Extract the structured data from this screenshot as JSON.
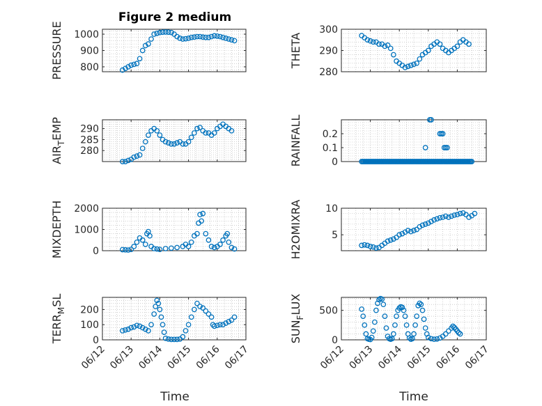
{
  "figure": {
    "title": "Figure 2 medium",
    "xlabel": "Time",
    "marker_color": "#0072BD",
    "axis_color": "#262626",
    "grid_color": "#b0b0b0"
  },
  "chart_data": [
    {
      "id": "pressure",
      "type": "scatter",
      "title": "Figure 2 medium",
      "ylabel": "PRESSURE",
      "ylim": [
        770,
        1030
      ],
      "yticks": [
        800,
        900,
        1000
      ],
      "xlim": [
        12,
        17
      ],
      "xticks": [
        12,
        13,
        14,
        15,
        16,
        17
      ],
      "grid": true,
      "points": [
        [
          12.7,
          780
        ],
        [
          12.8,
          790
        ],
        [
          12.9,
          800
        ],
        [
          13.0,
          810
        ],
        [
          13.1,
          815
        ],
        [
          13.2,
          820
        ],
        [
          13.3,
          850
        ],
        [
          13.4,
          900
        ],
        [
          13.5,
          930
        ],
        [
          13.6,
          940
        ],
        [
          13.7,
          970
        ],
        [
          13.8,
          1000
        ],
        [
          13.9,
          1005
        ],
        [
          14.0,
          1010
        ],
        [
          14.1,
          1012
        ],
        [
          14.2,
          1013
        ],
        [
          14.3,
          1012
        ],
        [
          14.4,
          1010
        ],
        [
          14.5,
          1000
        ],
        [
          14.6,
          985
        ],
        [
          14.7,
          975
        ],
        [
          14.8,
          970
        ],
        [
          14.9,
          972
        ],
        [
          15.0,
          975
        ],
        [
          15.1,
          980
        ],
        [
          15.2,
          982
        ],
        [
          15.3,
          985
        ],
        [
          15.4,
          985
        ],
        [
          15.5,
          982
        ],
        [
          15.6,
          980
        ],
        [
          15.7,
          980
        ],
        [
          15.8,
          985
        ],
        [
          15.9,
          990
        ],
        [
          16.0,
          988
        ],
        [
          16.1,
          985
        ],
        [
          16.2,
          980
        ],
        [
          16.3,
          975
        ],
        [
          16.4,
          970
        ],
        [
          16.5,
          965
        ],
        [
          16.6,
          960
        ]
      ]
    },
    {
      "id": "theta",
      "type": "scatter",
      "ylabel": "THETA",
      "ylim": [
        280,
        300
      ],
      "yticks": [
        280,
        290,
        300
      ],
      "xlim": [
        12,
        17
      ],
      "xticks": [
        12,
        13,
        14,
        15,
        16,
        17
      ],
      "grid": true,
      "points": [
        [
          12.7,
          297
        ],
        [
          12.8,
          296
        ],
        [
          12.9,
          295
        ],
        [
          13.0,
          294.5
        ],
        [
          13.1,
          294
        ],
        [
          13.2,
          294
        ],
        [
          13.3,
          293
        ],
        [
          13.4,
          293
        ],
        [
          13.5,
          292
        ],
        [
          13.6,
          292.5
        ],
        [
          13.7,
          291
        ],
        [
          13.8,
          288
        ],
        [
          13.9,
          285
        ],
        [
          14.0,
          284
        ],
        [
          14.1,
          283
        ],
        [
          14.2,
          282
        ],
        [
          14.3,
          282.5
        ],
        [
          14.4,
          283
        ],
        [
          14.5,
          283.5
        ],
        [
          14.6,
          284
        ],
        [
          14.7,
          286
        ],
        [
          14.8,
          288
        ],
        [
          14.9,
          289
        ],
        [
          15.0,
          290
        ],
        [
          15.1,
          292
        ],
        [
          15.2,
          293
        ],
        [
          15.3,
          294
        ],
        [
          15.4,
          293
        ],
        [
          15.5,
          291
        ],
        [
          15.6,
          290
        ],
        [
          15.7,
          289
        ],
        [
          15.8,
          290
        ],
        [
          15.9,
          291
        ],
        [
          16.0,
          292
        ],
        [
          16.1,
          294
        ],
        [
          16.2,
          295
        ],
        [
          16.3,
          294
        ],
        [
          16.4,
          293
        ]
      ]
    },
    {
      "id": "air_temp",
      "type": "scatter",
      "ylabel": "AIR_TEMP",
      "ylabel_main": "AIR",
      "ylabel_sub": "T",
      "ylabel_tail": "EMP",
      "ylim": [
        275,
        294
      ],
      "yticks": [
        280,
        285,
        290
      ],
      "xlim": [
        12,
        17
      ],
      "xticks": [
        12,
        13,
        14,
        15,
        16,
        17
      ],
      "grid": true,
      "points": [
        [
          12.7,
          275
        ],
        [
          12.8,
          275
        ],
        [
          12.9,
          275.5
        ],
        [
          13.0,
          276
        ],
        [
          13.1,
          277
        ],
        [
          13.2,
          277.5
        ],
        [
          13.3,
          278
        ],
        [
          13.4,
          281
        ],
        [
          13.5,
          284
        ],
        [
          13.6,
          287
        ],
        [
          13.7,
          289
        ],
        [
          13.8,
          290
        ],
        [
          13.9,
          289
        ],
        [
          14.0,
          287
        ],
        [
          14.1,
          285
        ],
        [
          14.2,
          284
        ],
        [
          14.3,
          283.5
        ],
        [
          14.4,
          283
        ],
        [
          14.5,
          283
        ],
        [
          14.6,
          283.5
        ],
        [
          14.7,
          284
        ],
        [
          14.8,
          283
        ],
        [
          14.9,
          283
        ],
        [
          15.0,
          284
        ],
        [
          15.1,
          286
        ],
        [
          15.2,
          288
        ],
        [
          15.3,
          290
        ],
        [
          15.4,
          290.5
        ],
        [
          15.5,
          289
        ],
        [
          15.6,
          288
        ],
        [
          15.7,
          288
        ],
        [
          15.8,
          287
        ],
        [
          15.9,
          288
        ],
        [
          16.0,
          290
        ],
        [
          16.1,
          291
        ],
        [
          16.2,
          292
        ],
        [
          16.3,
          291
        ],
        [
          16.4,
          290
        ],
        [
          16.5,
          289
        ]
      ]
    },
    {
      "id": "rainfall",
      "type": "scatter",
      "ylabel": "RAINFALL",
      "ylim": [
        0,
        0.3
      ],
      "yticks": [
        0,
        0.1,
        0.2
      ],
      "xlim": [
        12,
        17
      ],
      "xticks": [
        12,
        13,
        14,
        15,
        16,
        17
      ],
      "grid": true,
      "zero_range": [
        12.7,
        16.5
      ],
      "points": [
        [
          14.9,
          0.1
        ],
        [
          15.05,
          0.3
        ],
        [
          15.1,
          0.3
        ],
        [
          15.4,
          0.2
        ],
        [
          15.45,
          0.2
        ],
        [
          15.5,
          0.2
        ],
        [
          15.55,
          0.1
        ],
        [
          15.6,
          0.1
        ],
        [
          15.65,
          0.1
        ]
      ]
    },
    {
      "id": "mixdepth",
      "type": "scatter",
      "ylabel": "MIXDEPTH",
      "ylim": [
        0,
        2000
      ],
      "yticks": [
        0,
        1000,
        2000
      ],
      "xlim": [
        12,
        17
      ],
      "xticks": [
        12,
        13,
        14,
        15,
        16,
        17
      ],
      "grid": true,
      "points": [
        [
          12.7,
          50
        ],
        [
          12.8,
          40
        ],
        [
          12.9,
          30
        ],
        [
          13.0,
          60
        ],
        [
          13.1,
          200
        ],
        [
          13.2,
          400
        ],
        [
          13.3,
          600
        ],
        [
          13.4,
          500
        ],
        [
          13.5,
          300
        ],
        [
          13.55,
          800
        ],
        [
          13.6,
          900
        ],
        [
          13.65,
          700
        ],
        [
          13.7,
          200
        ],
        [
          13.8,
          100
        ],
        [
          13.9,
          80
        ],
        [
          14.0,
          60
        ],
        [
          14.2,
          100
        ],
        [
          14.4,
          120
        ],
        [
          14.6,
          150
        ],
        [
          14.8,
          200
        ],
        [
          14.9,
          300
        ],
        [
          15.0,
          200
        ],
        [
          15.1,
          400
        ],
        [
          15.2,
          700
        ],
        [
          15.3,
          800
        ],
        [
          15.35,
          1300
        ],
        [
          15.4,
          1700
        ],
        [
          15.45,
          1400
        ],
        [
          15.5,
          1750
        ],
        [
          15.6,
          800
        ],
        [
          15.7,
          500
        ],
        [
          15.8,
          200
        ],
        [
          15.9,
          150
        ],
        [
          16.0,
          200
        ],
        [
          16.1,
          300
        ],
        [
          16.2,
          500
        ],
        [
          16.3,
          700
        ],
        [
          16.35,
          800
        ],
        [
          16.4,
          400
        ],
        [
          16.5,
          150
        ],
        [
          16.6,
          80
        ]
      ]
    },
    {
      "id": "h2omixra",
      "type": "scatter",
      "ylabel": "H2OMIXRA",
      "ylim": [
        2,
        10
      ],
      "yticks": [
        5,
        10
      ],
      "xlim": [
        12,
        17
      ],
      "xticks": [
        12,
        13,
        14,
        15,
        16,
        17
      ],
      "grid": true,
      "points": [
        [
          12.7,
          3
        ],
        [
          12.8,
          3.1
        ],
        [
          12.9,
          3
        ],
        [
          13.0,
          2.8
        ],
        [
          13.1,
          2.7
        ],
        [
          13.2,
          2.5
        ],
        [
          13.3,
          2.6
        ],
        [
          13.4,
          3
        ],
        [
          13.5,
          3.4
        ],
        [
          13.6,
          3.8
        ],
        [
          13.7,
          4
        ],
        [
          13.8,
          4.2
        ],
        [
          13.9,
          4.5
        ],
        [
          14.0,
          5
        ],
        [
          14.1,
          5.2
        ],
        [
          14.2,
          5.5
        ],
        [
          14.3,
          5.8
        ],
        [
          14.4,
          5.6
        ],
        [
          14.5,
          5.8
        ],
        [
          14.6,
          6
        ],
        [
          14.7,
          6.5
        ],
        [
          14.8,
          6.8
        ],
        [
          14.9,
          7
        ],
        [
          15.0,
          7.2
        ],
        [
          15.1,
          7.5
        ],
        [
          15.2,
          7.8
        ],
        [
          15.3,
          8
        ],
        [
          15.4,
          8.2
        ],
        [
          15.5,
          8.3
        ],
        [
          15.6,
          8.5
        ],
        [
          15.7,
          8.3
        ],
        [
          15.8,
          8.5
        ],
        [
          15.9,
          8.7
        ],
        [
          16.0,
          8.8
        ],
        [
          16.1,
          9
        ],
        [
          16.2,
          9.1
        ],
        [
          16.3,
          8.8
        ],
        [
          16.4,
          8.3
        ],
        [
          16.5,
          8.6
        ],
        [
          16.6,
          9
        ]
      ]
    },
    {
      "id": "terr_msl",
      "type": "scatter",
      "ylabel": "TERR_MSL",
      "ylabel_main": "TERR",
      "ylabel_sub": "M",
      "ylabel_tail": "SL",
      "ylim": [
        0,
        280
      ],
      "yticks": [
        0,
        100,
        200
      ],
      "xlim": [
        12,
        17
      ],
      "xticks": [
        12,
        13,
        14,
        15,
        16,
        17
      ],
      "grid": true,
      "points": [
        [
          12.7,
          60
        ],
        [
          12.8,
          65
        ],
        [
          12.9,
          70
        ],
        [
          13.0,
          80
        ],
        [
          13.1,
          85
        ],
        [
          13.2,
          95
        ],
        [
          13.3,
          90
        ],
        [
          13.4,
          80
        ],
        [
          13.5,
          70
        ],
        [
          13.6,
          60
        ],
        [
          13.7,
          100
        ],
        [
          13.8,
          170
        ],
        [
          13.85,
          220
        ],
        [
          13.9,
          260
        ],
        [
          13.95,
          240
        ],
        [
          14.0,
          200
        ],
        [
          14.05,
          150
        ],
        [
          14.1,
          100
        ],
        [
          14.15,
          50
        ],
        [
          14.2,
          10
        ],
        [
          14.3,
          5
        ],
        [
          14.4,
          3
        ],
        [
          14.5,
          3
        ],
        [
          14.6,
          3
        ],
        [
          14.7,
          5
        ],
        [
          14.8,
          20
        ],
        [
          14.9,
          60
        ],
        [
          15.0,
          100
        ],
        [
          15.1,
          150
        ],
        [
          15.2,
          200
        ],
        [
          15.3,
          240
        ],
        [
          15.4,
          220
        ],
        [
          15.5,
          210
        ],
        [
          15.6,
          190
        ],
        [
          15.7,
          170
        ],
        [
          15.8,
          150
        ],
        [
          15.85,
          100
        ],
        [
          15.9,
          90
        ],
        [
          16.0,
          95
        ],
        [
          16.1,
          100
        ],
        [
          16.2,
          100
        ],
        [
          16.3,
          110
        ],
        [
          16.4,
          120
        ],
        [
          16.5,
          130
        ],
        [
          16.6,
          150
        ]
      ]
    },
    {
      "id": "sun_flux",
      "type": "scatter",
      "ylabel": "SUN_FLUX",
      "ylabel_main": "SUN",
      "ylabel_sub": "F",
      "ylabel_tail": "LUX",
      "ylim": [
        0,
        720
      ],
      "yticks": [
        0,
        500
      ],
      "xlim": [
        12,
        17
      ],
      "xticks": [
        12,
        13,
        14,
        15,
        16,
        17
      ],
      "grid": true,
      "points": [
        [
          12.7,
          520
        ],
        [
          12.75,
          400
        ],
        [
          12.8,
          250
        ],
        [
          12.85,
          100
        ],
        [
          12.9,
          20
        ],
        [
          12.95,
          10
        ],
        [
          13.0,
          5
        ],
        [
          13.05,
          40
        ],
        [
          13.1,
          150
        ],
        [
          13.15,
          300
        ],
        [
          13.2,
          500
        ],
        [
          13.25,
          620
        ],
        [
          13.3,
          680
        ],
        [
          13.35,
          700
        ],
        [
          13.4,
          690
        ],
        [
          13.45,
          600
        ],
        [
          13.5,
          400
        ],
        [
          13.55,
          200
        ],
        [
          13.6,
          60
        ],
        [
          13.65,
          20
        ],
        [
          13.7,
          10
        ],
        [
          13.75,
          20
        ],
        [
          13.8,
          100
        ],
        [
          13.85,
          250
        ],
        [
          13.9,
          400
        ],
        [
          13.95,
          500
        ],
        [
          14.0,
          540
        ],
        [
          14.05,
          560
        ],
        [
          14.1,
          550
        ],
        [
          14.15,
          500
        ],
        [
          14.2,
          400
        ],
        [
          14.25,
          250
        ],
        [
          14.3,
          100
        ],
        [
          14.35,
          30
        ],
        [
          14.4,
          10
        ],
        [
          14.45,
          20
        ],
        [
          14.5,
          100
        ],
        [
          14.55,
          250
        ],
        [
          14.6,
          400
        ],
        [
          14.65,
          580
        ],
        [
          14.7,
          620
        ],
        [
          14.75,
          600
        ],
        [
          14.8,
          500
        ],
        [
          14.85,
          350
        ],
        [
          14.9,
          200
        ],
        [
          14.95,
          100
        ],
        [
          15.0,
          40
        ],
        [
          15.1,
          20
        ],
        [
          15.2,
          10
        ],
        [
          15.3,
          15
        ],
        [
          15.4,
          30
        ],
        [
          15.5,
          60
        ],
        [
          15.6,
          100
        ],
        [
          15.7,
          150
        ],
        [
          15.8,
          200
        ],
        [
          15.85,
          230
        ],
        [
          15.9,
          210
        ],
        [
          15.95,
          180
        ],
        [
          16.0,
          150
        ],
        [
          16.05,
          120
        ],
        [
          16.1,
          100
        ]
      ]
    }
  ],
  "xticklabels": [
    "06/12",
    "06/13",
    "06/14",
    "06/15",
    "06/16",
    "06/17"
  ]
}
